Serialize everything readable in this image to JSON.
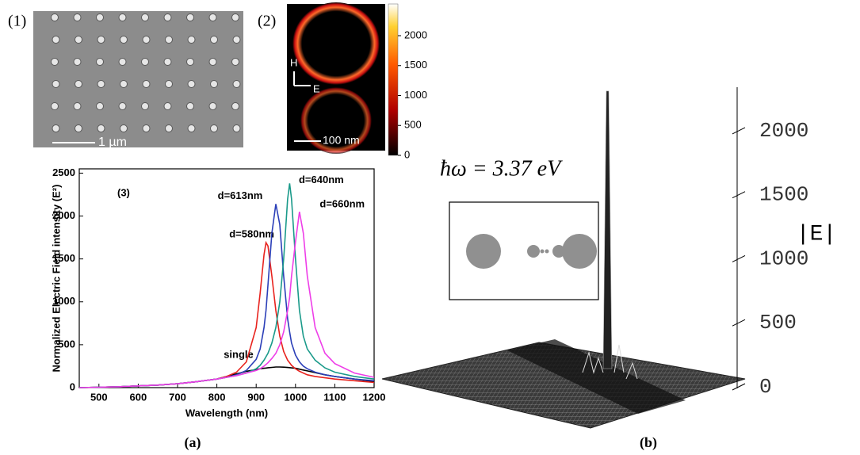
{
  "figures": {
    "a": "(a)",
    "b": "(b)"
  },
  "sem_image": {
    "label": "(1)",
    "scale_bar": "1 µm"
  },
  "field_map": {
    "label": "(2)",
    "h_label": "H",
    "e_label": "E",
    "scale_bar": "100 nm"
  },
  "chart_data": [
    {
      "type": "line",
      "label": "(3)",
      "xlabel": "Wavelength (nm)",
      "ylabel": "Normalized Electric Field intensity (E²)",
      "x": [
        450,
        500,
        550,
        600,
        650,
        700,
        750,
        800,
        825,
        850,
        875,
        900,
        910,
        920,
        925,
        930,
        940,
        950,
        960,
        970,
        980,
        985,
        990,
        1000,
        1010,
        1020,
        1030,
        1050,
        1075,
        1100,
        1150,
        1200
      ],
      "xlim": [
        450,
        1200
      ],
      "xticks": [
        500,
        600,
        700,
        800,
        900,
        1000,
        1100,
        1200
      ],
      "ylim": [
        0,
        2550
      ],
      "yticks": [
        0,
        500,
        1000,
        1500,
        2000,
        2500
      ],
      "series": [
        {
          "name": "single",
          "color": "#000000",
          "values": [
            0,
            5,
            10,
            20,
            30,
            45,
            70,
            100,
            130,
            160,
            190,
            210,
            220,
            225,
            228,
            232,
            236,
            240,
            240,
            238,
            235,
            233,
            230,
            225,
            215,
            205,
            195,
            175,
            150,
            130,
            100,
            70
          ]
        },
        {
          "name": "d=580nm",
          "color": "#e8231e",
          "values": [
            0,
            5,
            10,
            20,
            30,
            45,
            70,
            100,
            130,
            180,
            300,
            700,
            1100,
            1550,
            1690,
            1650,
            1300,
            900,
            600,
            420,
            320,
            290,
            260,
            220,
            190,
            170,
            150,
            130,
            115,
            100,
            80,
            60
          ]
        },
        {
          "name": "d=613nm",
          "color": "#2b3fb8",
          "values": [
            0,
            5,
            10,
            20,
            30,
            45,
            70,
            100,
            120,
            150,
            200,
            330,
            450,
            700,
            900,
            1200,
            1800,
            2140,
            1900,
            1300,
            800,
            650,
            520,
            380,
            300,
            250,
            220,
            180,
            150,
            130,
            100,
            80
          ]
        },
        {
          "name": "d=640nm",
          "color": "#1a9a8a",
          "values": [
            0,
            5,
            10,
            20,
            30,
            45,
            70,
            100,
            120,
            140,
            170,
            220,
            260,
            320,
            360,
            400,
            520,
            700,
            1000,
            1500,
            2200,
            2380,
            2200,
            1500,
            900,
            600,
            450,
            320,
            230,
            180,
            130,
            100
          ]
        },
        {
          "name": "d=660nm",
          "color": "#ee3ee8",
          "values": [
            0,
            5,
            10,
            20,
            30,
            45,
            70,
            100,
            120,
            140,
            170,
            200,
            220,
            250,
            270,
            290,
            340,
            400,
            500,
            650,
            900,
            1050,
            1300,
            1700,
            2050,
            1800,
            1300,
            700,
            400,
            280,
            170,
            120
          ]
        }
      ]
    },
    {
      "type": "colorbar",
      "ylim": [
        0,
        2530
      ],
      "yticks": [
        0,
        500,
        1000,
        1500,
        2000
      ]
    },
    {
      "type": "surface",
      "annotation": "ħω = 3.37 eV",
      "zlabel": "|E|",
      "zlim": [
        0,
        2340
      ],
      "zticks": [
        0,
        500,
        1000,
        1500,
        2000
      ],
      "peak": 2310
    }
  ]
}
